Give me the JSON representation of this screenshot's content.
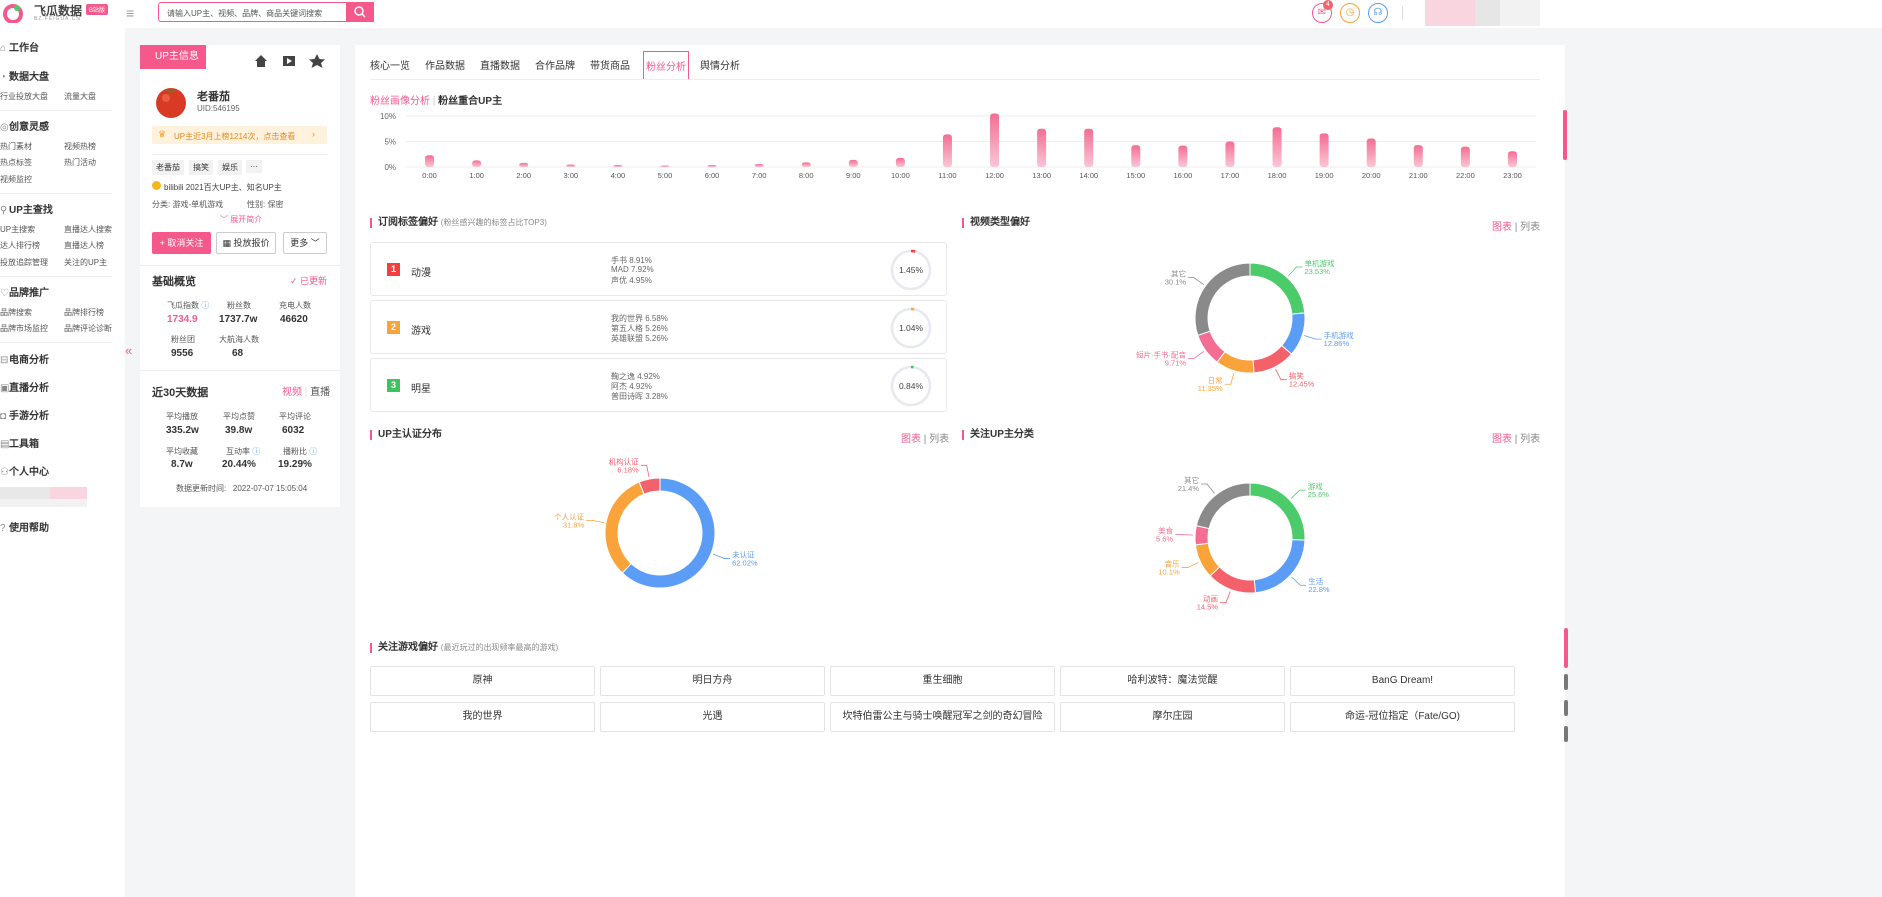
{
  "brand": {
    "name": "飞瓜数据",
    "sub": "BZ.FEIGUA.CN",
    "badge": "B站版"
  },
  "search": {
    "placeholder": "请输入UP主、视频、品牌、商品关键词搜索"
  },
  "header": {
    "notif_count": "4"
  },
  "sidebar": {
    "workbench": "工作台",
    "data_dashboard": "数据大盘",
    "industry_ad": "行业投放大盘",
    "traffic": "流量大盘",
    "creative": "创意灵感",
    "hot_material": "热门素材",
    "video_hot": "视频热榜",
    "hot_tags": "热点标签",
    "hot_events": "热门活动",
    "video_monitor": "视频监控",
    "up_search_h": "UP主查找",
    "up_search": "UP主搜索",
    "live_search": "直播达人搜索",
    "talent_rank": "达人排行榜",
    "live_rank": "直播达人榜",
    "ad_tracking": "投放追踪管理",
    "followed_up": "关注的UP主",
    "brand_promo": "品牌推广",
    "brand_search": "品牌搜索",
    "brand_rank": "品牌排行榜",
    "brand_monitor": "品牌市场监控",
    "brand_review": "品牌评论诊断",
    "ecommerce": "电商分析",
    "live_analysis": "直播分析",
    "game_analysis": "手游分析",
    "toolbox": "工具箱",
    "personal": "个人中心",
    "help": "使用帮助"
  },
  "profile": {
    "tag": "UP主信息",
    "name": "老番茄",
    "uid": "UID:546195",
    "notice": "UP主近3月上榜1214次，点击查看",
    "tags": [
      "老番茄",
      "搞笑",
      "娱乐",
      "···"
    ],
    "honor": "bilibili 2021百大UP主、知名UP主",
    "category": "分类: 游戏-单机游戏",
    "gender": "性别: 保密",
    "expand": "展开简介",
    "unfollow": "取消关注",
    "quote": "投放报价",
    "more": "更多",
    "basic_title": "基础概览",
    "updated": "已更新",
    "stats": [
      {
        "label": "飞瓜指数",
        "value": "1734.9"
      },
      {
        "label": "粉丝数",
        "value": "1737.7w"
      },
      {
        "label": "充电人数",
        "value": "46620"
      },
      {
        "label": "粉丝团",
        "value": "9556"
      },
      {
        "label": "大航海人数",
        "value": "68"
      }
    ],
    "recent_title": "近30天数据",
    "recent_video": "视频",
    "recent_live": "直播",
    "recent": [
      {
        "label": "平均播放",
        "value": "335.2w"
      },
      {
        "label": "平均点赞",
        "value": "39.8w"
      },
      {
        "label": "平均评论",
        "value": "6032"
      },
      {
        "label": "平均收藏",
        "value": "8.7w"
      },
      {
        "label": "互动率",
        "value": "20.44%"
      },
      {
        "label": "播粉比",
        "value": "19.29%"
      }
    ],
    "update_time": "数据更新时间:   2022-07-07 15:05:04"
  },
  "tabs": [
    "核心一览",
    "作品数据",
    "直播数据",
    "合作品牌",
    "带货商品",
    "粉丝分析",
    "舆情分析"
  ],
  "subtabs": {
    "a": "粉丝画像分析",
    "b": "粉丝重合UP主"
  },
  "colors": {
    "accent": "#f5598c",
    "green": "#4ccb6b",
    "blue": "#5b9cf6",
    "red": "#f4616a",
    "orange": "#f9a33a",
    "pink": "#f46d93",
    "gray": "#8a8a8a"
  },
  "chart_data": [
    {
      "type": "bar",
      "title": "",
      "categories": [
        "0:00",
        "1:00",
        "2:00",
        "3:00",
        "4:00",
        "5:00",
        "6:00",
        "7:00",
        "8:00",
        "9:00",
        "10:00",
        "11:00",
        "12:00",
        "13:00",
        "14:00",
        "15:00",
        "16:00",
        "17:00",
        "18:00",
        "19:00",
        "20:00",
        "21:00",
        "22:00",
        "23:00"
      ],
      "values": [
        2.3,
        1.3,
        0.8,
        0.5,
        0.4,
        0.3,
        0.4,
        0.6,
        0.9,
        1.4,
        1.8,
        6.4,
        10.5,
        7.5,
        7.5,
        4.3,
        4.2,
        5.0,
        7.8,
        6.6,
        5.6,
        4.3,
        4.0,
        3.1
      ],
      "ylim": [
        0,
        10
      ],
      "yticks": [
        "0%",
        "5%",
        "10%"
      ]
    },
    {
      "type": "pie",
      "title": "视频类型偏好",
      "slices": [
        {
          "label": "单机游戏",
          "value": 23.53
        },
        {
          "label": "手机游戏",
          "value": 12.86
        },
        {
          "label": "搞笑",
          "value": 12.45
        },
        {
          "label": "日常",
          "value": 11.35
        },
        {
          "label": "短片·手书·配音",
          "value": 9.71
        },
        {
          "label": "其它",
          "value": 30.1
        }
      ]
    },
    {
      "type": "pie",
      "title": "UP主认证分布",
      "slices": [
        {
          "label": "未认证",
          "value": 62.02
        },
        {
          "label": "个人认证",
          "value": 31.8
        },
        {
          "label": "机构认证",
          "value": 6.18
        }
      ]
    },
    {
      "type": "pie",
      "title": "关注UP主分类",
      "slices": [
        {
          "label": "游戏",
          "value": 25.6
        },
        {
          "label": "生活",
          "value": 22.8
        },
        {
          "label": "动画",
          "value": 14.5
        },
        {
          "label": "音乐",
          "value": 10.1
        },
        {
          "label": "美食",
          "value": 5.6
        },
        {
          "label": "其它",
          "value": 21.4
        }
      ]
    }
  ],
  "subscription": {
    "title": "订阅标签偏好",
    "note": "(粉丝感兴趣的标签占比TOP3)",
    "items": [
      {
        "rank": "1",
        "name": "动漫",
        "subs": [
          "手书 8.91%",
          "MAD 7.92%",
          "声优 4.95%"
        ],
        "pct": "1.45%",
        "progress": 0.0145
      },
      {
        "rank": "2",
        "name": "游戏",
        "subs": [
          "我的世界 6.58%",
          "第五人格 5.26%",
          "英雄联盟 5.26%"
        ],
        "pct": "1.04%",
        "progress": 0.0104
      },
      {
        "rank": "3",
        "name": "明星",
        "subs": [
          "鞠之逸 4.92%",
          "阿杰 4.92%",
          "普田诗晖 3.28%"
        ],
        "pct": "0.84%",
        "progress": 0.0084
      }
    ]
  },
  "video_type": {
    "title": "视频类型偏好"
  },
  "cert": {
    "title": "UP主认证分布"
  },
  "follow": {
    "title": "关注UP主分类"
  },
  "toggles": {
    "chart": "图表",
    "list": "列表"
  },
  "games": {
    "title": "关注游戏偏好",
    "note": "(最近玩过的出现频率最高的游戏)",
    "items": [
      "原神",
      "明日方舟",
      "重生细胞",
      "哈利波特：魔法觉醒",
      "BanG Dream!",
      "我的世界",
      "光遇",
      "坎特伯雷公主与骑士唤醒冠军之剑的奇幻冒险",
      "摩尔庄园",
      "命运-冠位指定（Fate/GO)"
    ]
  }
}
